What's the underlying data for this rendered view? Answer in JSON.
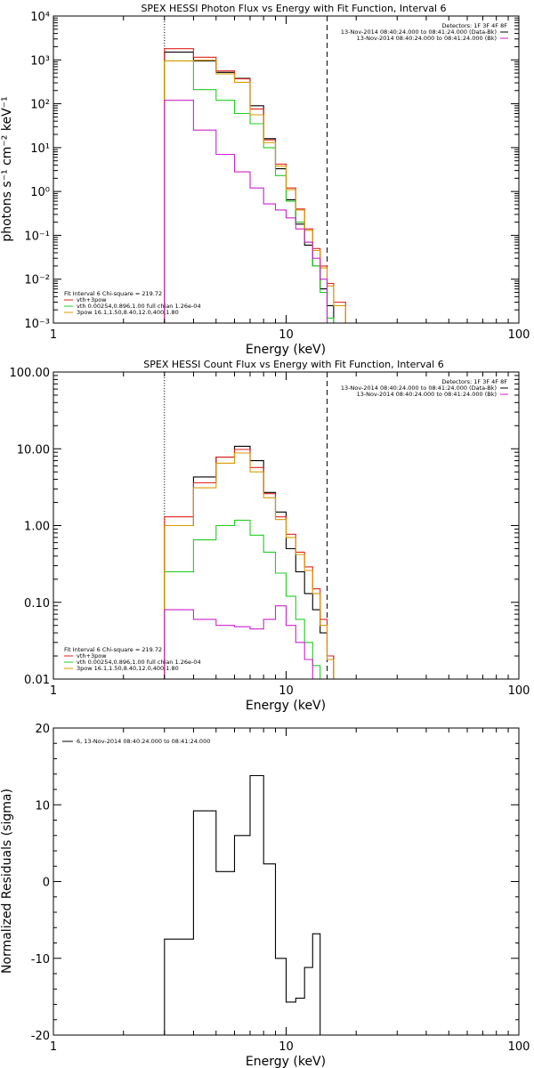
{
  "figure": {
    "panels": [
      {
        "title": "SPEX HESSI Photon Flux vs Energy with Fit Function, Interval 6",
        "xlabel": "Energy (keV)",
        "ylabel": "photons s⁻¹ cm⁻² keV⁻¹"
      },
      {
        "title": "SPEX HESSI Count Flux vs Energy with Fit Function, Interval 6",
        "xlabel": "Energy (keV)",
        "ylabel": ""
      },
      {
        "title": "",
        "xlabel": "Energy (keV)",
        "ylabel": "Normalized Residuals (sigma)"
      }
    ]
  },
  "chart_data": [
    {
      "type": "line",
      "step": true,
      "title": "SPEX HESSI Photon Flux vs Energy with Fit Function, Interval 6",
      "xlabel": "Energy (keV)",
      "ylabel": "photons s⁻¹ cm⁻² keV⁻¹",
      "xscale": "log",
      "yscale": "log",
      "xlim": [
        1,
        100
      ],
      "ylim": [
        0.001,
        10000
      ],
      "xticks": [
        1,
        10,
        100
      ],
      "xtick_labels": [
        "1",
        "10",
        "100"
      ],
      "yticks": [
        0.001,
        0.01,
        0.1,
        1,
        10,
        100,
        1000,
        10000
      ],
      "ytick_labels": [
        "10⁻³",
        "10⁻²",
        "10⁻¹",
        "10⁰",
        "10¹",
        "10²",
        "10³",
        "10⁴"
      ],
      "vlines": [
        {
          "x": 3.0,
          "style": "dotted"
        },
        {
          "x": 15.0,
          "style": "dashed"
        }
      ],
      "edges": [
        3.0,
        4.0,
        5.0,
        6.0,
        7.0,
        8.0,
        9.0,
        10.0,
        11.0,
        12.0,
        13.0,
        14.0,
        15.0,
        16.0,
        18.0
      ],
      "series": [
        {
          "name": "",
          "color": "#000000",
          "values": [
            1500,
            950,
            520,
            380,
            90,
            16,
            3.3,
            0.65,
            0.18,
            0.06,
            0.02,
            0.006,
            0.0025,
            null
          ]
        },
        {
          "name": "vth+3pow",
          "color": "#e0231c",
          "values": [
            1800,
            1150,
            560,
            370,
            76,
            15,
            4.2,
            1.2,
            0.4,
            0.14,
            0.05,
            0.02,
            0.008,
            0.003
          ]
        },
        {
          "name": "vth 0.00254,0.896,1.00  full chian 1.26e-04",
          "color": "#22cc22",
          "values": [
            950,
            210,
            120,
            60,
            35,
            10,
            2.3,
            0.6,
            0.2,
            0.07,
            0.02,
            0.005,
            0.0013,
            null
          ]
        },
        {
          "name": "3pow 16.1,1.50,8.40,12.0,400,1.80",
          "color": "#d99a00",
          "values": [
            950,
            980,
            480,
            310,
            56,
            13,
            3.8,
            1.1,
            0.38,
            0.13,
            0.045,
            0.018,
            0.007,
            0.0025
          ]
        },
        {
          "name": "",
          "color": "#cc22cc",
          "values": [
            120,
            25,
            7,
            2.8,
            1.2,
            0.52,
            0.38,
            0.25,
            0.14,
            0.07,
            0.03,
            0.01,
            null,
            null
          ]
        }
      ],
      "annotations": {
        "top_right": [
          "Detectors: 1F 3F 4F 8F",
          "13-Nov-2014 08:40:24.000 to 08:41:24.000 (Data-Bk)",
          "13-Nov-2014 08:40:24.000 to 08:41:24.000 (Bk)"
        ],
        "bottom_left": [
          "Fit Interval 6   Chi-square = 219.72",
          "vth+3pow",
          "vth 0.00254,0.896,1.00  full chian 1.26e-04",
          "3pow 16.1,1.50,8.40,12.0,400,1.80"
        ]
      }
    },
    {
      "type": "line",
      "step": true,
      "title": "SPEX HESSI Count Flux vs Energy with Fit Function, Interval 6",
      "xlabel": "Energy (keV)",
      "ylabel": "",
      "xscale": "log",
      "yscale": "log",
      "xlim": [
        1,
        100
      ],
      "ylim": [
        0.01,
        100
      ],
      "xticks": [
        1,
        10,
        100
      ],
      "xtick_labels": [
        "1",
        "10",
        "100"
      ],
      "yticks": [
        0.01,
        0.1,
        1,
        10,
        100
      ],
      "ytick_labels": [
        "0.01",
        "0.10",
        "1.00",
        "10.00",
        "100.00"
      ],
      "vlines": [
        {
          "x": 3.0,
          "style": "dotted"
        },
        {
          "x": 15.0,
          "style": "dashed"
        }
      ],
      "edges": [
        3.0,
        4.0,
        5.0,
        6.0,
        7.0,
        8.0,
        9.0,
        10.0,
        11.0,
        12.0,
        13.0,
        14.0,
        15.0,
        16.0,
        18.0
      ],
      "series": [
        {
          "name": "",
          "color": "#000000",
          "values": [
            1.0,
            4.3,
            7.8,
            10.8,
            7.0,
            2.7,
            1.5,
            0.5,
            0.25,
            0.13,
            0.08,
            0.04,
            0.02,
            null
          ]
        },
        {
          "name": "vth+3pow",
          "color": "#e0231c",
          "values": [
            1.3,
            3.6,
            7.8,
            9.8,
            5.7,
            2.6,
            1.3,
            0.77,
            0.45,
            0.29,
            0.15,
            0.06,
            0.02,
            0.01
          ]
        },
        {
          "name": "vth 0.00254,0.896,1.00  full chian 1.26e-04",
          "color": "#22cc22",
          "values": [
            0.25,
            0.65,
            1.0,
            1.17,
            0.75,
            0.45,
            0.24,
            0.12,
            0.06,
            0.03,
            0.015,
            0.01,
            null,
            null
          ]
        },
        {
          "name": "3pow 16.1,1.50,8.40,12.0,400,1.80",
          "color": "#d99a00",
          "values": [
            1.0,
            3.1,
            6.5,
            8.8,
            5.0,
            2.3,
            1.2,
            0.7,
            0.42,
            0.26,
            0.13,
            0.05,
            0.018,
            0.01
          ]
        },
        {
          "name": "",
          "color": "#cc22cc",
          "values": [
            0.08,
            0.06,
            0.05,
            0.048,
            0.045,
            0.06,
            0.09,
            0.05,
            0.03,
            0.018,
            null,
            null,
            null,
            null
          ]
        }
      ],
      "annotations": {
        "top_right": [
          "Detectors: 1F 3F 4F 8F",
          "13-Nov-2014 08:40:24.000 to 08:41:24.000 (Data-Bk)",
          "13-Nov-2014 08:40:24.000 to 08:41:24.000 (Bk)"
        ],
        "bottom_left": [
          "Fit Interval 6   Chi-square = 219.72",
          "vth+3pow",
          "vth 0.00254,0.896,1.00  full chian 1.26e-04",
          "3pow 16.1,1.50,8.40,12.0,400,1.80"
        ]
      }
    },
    {
      "type": "line",
      "step": true,
      "title": "",
      "xlabel": "Energy (keV)",
      "ylabel": "Normalized Residuals (sigma)",
      "xscale": "log",
      "yscale": "linear",
      "xlim": [
        1,
        100
      ],
      "ylim": [
        -20,
        20
      ],
      "xticks": [
        1,
        10,
        100
      ],
      "xtick_labels": [
        "1",
        "10",
        "100"
      ],
      "yticks": [
        -20,
        -10,
        0,
        10,
        20
      ],
      "ytick_labels": [
        "-20",
        "-10",
        "0",
        "10",
        "20"
      ],
      "edges": [
        3.0,
        4.0,
        5.0,
        6.0,
        7.0,
        8.0,
        9.0,
        10.0,
        11.0,
        12.0,
        13.0,
        14.0,
        15.0
      ],
      "series": [
        {
          "name": "6, 13-Nov-2014 08:40:24.000 to 08:41:24.000",
          "color": "#000000",
          "values": [
            -7.5,
            9.2,
            1.3,
            6.0,
            13.8,
            2.3,
            -10.0,
            -15.7,
            -15.2,
            -11.2,
            -6.8,
            null
          ]
        }
      ]
    }
  ]
}
